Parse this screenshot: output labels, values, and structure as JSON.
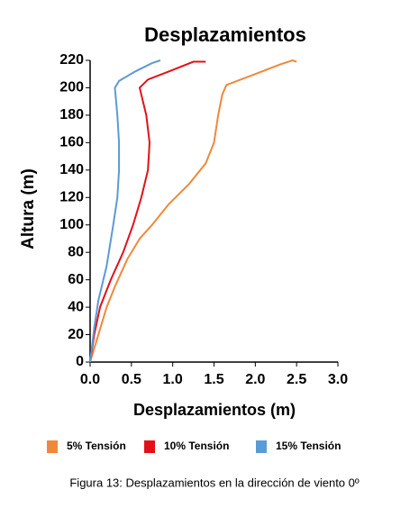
{
  "chart_data": {
    "type": "line",
    "title": "Desplazamientos",
    "x_label": "Desplazamientos (m)",
    "y_label": "Altura (m)",
    "caption": "Figura 13: Desplazamientos en la dirección de viento 0º",
    "xlim": [
      0,
      3
    ],
    "xticks": [
      {
        "value": 0,
        "label": "0.0"
      },
      0.5,
      {
        "value": 1,
        "label": "1.0"
      },
      1.5,
      {
        "value": 2,
        "label": "2.0"
      },
      2.5,
      {
        "value": 3,
        "label": "3.0"
      }
    ],
    "ylim": [
      0,
      220
    ],
    "yticks": [
      0,
      20,
      40,
      60,
      80,
      100,
      120,
      140,
      160,
      180,
      200,
      220
    ],
    "series": [
      {
        "name": "5% Tensión",
        "color": "#f0883a",
        "x": [
          0,
          0.1,
          0.2,
          0.3,
          0.45,
          0.6,
          0.75,
          0.95,
          1.2,
          1.4,
          1.5,
          1.55,
          1.6,
          1.65,
          2.0,
          2.3,
          2.45,
          2.5
        ],
        "values": [
          0,
          20,
          40,
          55,
          75,
          90,
          100,
          115,
          130,
          145,
          160,
          180,
          195,
          202,
          210,
          217,
          220,
          219
        ]
      },
      {
        "name": "10% Tensión",
        "color": "#e3101a",
        "x": [
          0,
          0.05,
          0.12,
          0.25,
          0.4,
          0.52,
          0.62,
          0.7,
          0.72,
          0.68,
          0.6,
          0.7,
          1.0,
          1.25,
          1.4
        ],
        "values": [
          0,
          20,
          40,
          60,
          80,
          100,
          120,
          140,
          160,
          180,
          200,
          206,
          213,
          219,
          219
        ]
      },
      {
        "name": "15% Tensión",
        "color": "#5b9bd5",
        "x": [
          0,
          0.05,
          0.1,
          0.2,
          0.28,
          0.33,
          0.35,
          0.35,
          0.33,
          0.3,
          0.35,
          0.55,
          0.75,
          0.85
        ],
        "values": [
          0,
          25,
          45,
          70,
          100,
          120,
          140,
          160,
          180,
          200,
          205,
          212,
          218,
          220
        ]
      }
    ]
  }
}
